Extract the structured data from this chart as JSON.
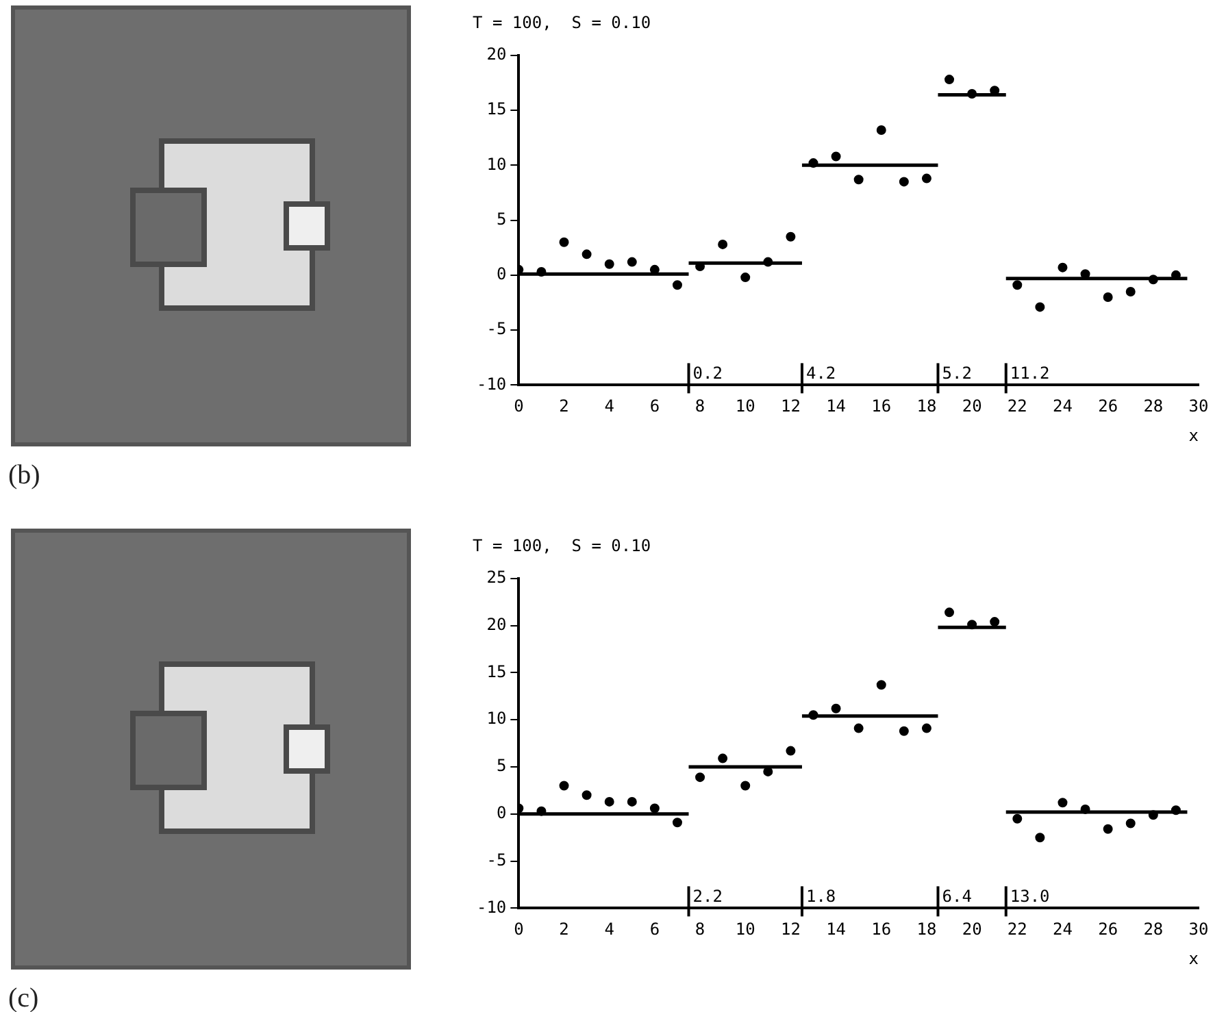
{
  "chart_data": [
    {
      "type": "scatter",
      "title": "T = 100,  S = 0.10",
      "xlabel": "x",
      "xlim": [
        0,
        30
      ],
      "xticks": [
        0,
        2,
        4,
        6,
        8,
        10,
        12,
        14,
        16,
        18,
        20,
        22,
        24,
        26,
        28,
        30
      ],
      "ylim": [
        -10,
        20
      ],
      "yticks": [
        -10,
        -5,
        0,
        5,
        10,
        15,
        20
      ],
      "grid": false,
      "legend": false,
      "series": [
        {
          "type": "scatter",
          "marker": "circle",
          "color": "#000000",
          "x": [
            0,
            1,
            2,
            3,
            4,
            5,
            6,
            7,
            8,
            9,
            10,
            11,
            12,
            13,
            14,
            15,
            16,
            17,
            18,
            19,
            20,
            21,
            22,
            23,
            24,
            25,
            26,
            27,
            28,
            29
          ],
          "values": [
            0.5,
            0.3,
            3.0,
            1.9,
            1.0,
            1.2,
            0.5,
            -0.9,
            0.8,
            2.8,
            -0.2,
            1.2,
            3.5,
            10.2,
            10.8,
            8.7,
            13.2,
            8.5,
            8.8,
            17.8,
            16.5,
            16.8,
            -0.9,
            -2.9,
            0.7,
            0.1,
            -2.0,
            -1.5,
            -0.4,
            0.0
          ]
        },
        {
          "type": "line",
          "marker": "none",
          "color": "#000000",
          "x": [
            0,
            7.5
          ],
          "values": [
            0.1,
            0.1
          ]
        },
        {
          "type": "line",
          "marker": "none",
          "color": "#000000",
          "x": [
            7.5,
            12.5
          ],
          "values": [
            1.1,
            1.1
          ]
        },
        {
          "type": "line",
          "marker": "none",
          "color": "#000000",
          "x": [
            12.5,
            18.5
          ],
          "values": [
            10.0,
            10.0
          ]
        },
        {
          "type": "line",
          "marker": "none",
          "color": "#000000",
          "x": [
            18.5,
            21.5
          ],
          "values": [
            16.4,
            16.4
          ]
        },
        {
          "type": "line",
          "marker": "none",
          "color": "#000000",
          "x": [
            21.5,
            29.5
          ],
          "values": [
            -0.3,
            -0.3
          ]
        }
      ],
      "annotations": [
        "(b)",
        "0.2",
        "4.2",
        "5.2",
        "11.2"
      ]
    },
    {
      "type": "scatter",
      "title": "T = 100,  S = 0.10",
      "xlabel": "x",
      "xlim": [
        0,
        30
      ],
      "xticks": [
        0,
        2,
        4,
        6,
        8,
        10,
        12,
        14,
        16,
        18,
        20,
        22,
        24,
        26,
        28,
        30
      ],
      "ylim": [
        -10,
        25
      ],
      "yticks": [
        -10,
        -5,
        0,
        5,
        10,
        15,
        20,
        25
      ],
      "grid": false,
      "legend": false,
      "series": [
        {
          "type": "scatter",
          "marker": "circle",
          "color": "#000000",
          "x": [
            0,
            1,
            2,
            3,
            4,
            5,
            6,
            7,
            8,
            9,
            10,
            11,
            12,
            13,
            14,
            15,
            16,
            17,
            18,
            19,
            20,
            21,
            22,
            23,
            24,
            25,
            26,
            27,
            28,
            29
          ],
          "values": [
            0.6,
            0.3,
            3.0,
            2.0,
            1.3,
            1.3,
            0.6,
            -0.9,
            3.9,
            5.9,
            3.0,
            4.5,
            6.7,
            10.5,
            11.2,
            9.1,
            13.7,
            8.8,
            9.1,
            21.4,
            20.1,
            20.4,
            -0.5,
            -2.5,
            1.2,
            0.5,
            -1.6,
            -1.0,
            -0.1,
            0.4
          ]
        },
        {
          "type": "line",
          "marker": "none",
          "color": "#000000",
          "x": [
            0,
            7.5
          ],
          "values": [
            0.0,
            0.0
          ]
        },
        {
          "type": "line",
          "marker": "none",
          "color": "#000000",
          "x": [
            7.5,
            12.5
          ],
          "values": [
            5.0,
            5.0
          ]
        },
        {
          "type": "line",
          "marker": "none",
          "color": "#000000",
          "x": [
            12.5,
            18.5
          ],
          "values": [
            10.4,
            10.4
          ]
        },
        {
          "type": "line",
          "marker": "none",
          "color": "#000000",
          "x": [
            18.5,
            21.5
          ],
          "values": [
            19.8,
            19.8
          ]
        },
        {
          "type": "line",
          "marker": "none",
          "color": "#000000",
          "x": [
            21.5,
            29.5
          ],
          "values": [
            0.2,
            0.2
          ]
        }
      ],
      "annotations": [
        "(c)",
        "2.2",
        "1.8",
        "6.4",
        "13.0"
      ]
    }
  ]
}
